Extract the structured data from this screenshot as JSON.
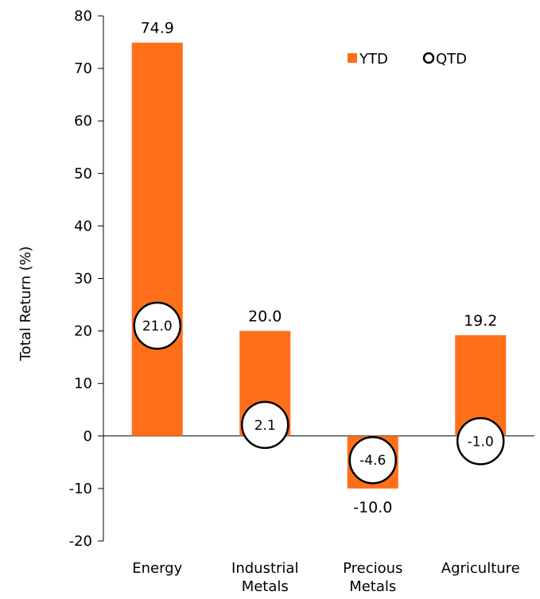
{
  "chart_data": {
    "type": "bar",
    "categories": [
      [
        "Energy"
      ],
      [
        "Industrial",
        "Metals"
      ],
      [
        "Precious",
        "Metals"
      ],
      [
        "Agriculture"
      ]
    ],
    "series": [
      {
        "name": "YTD",
        "kind": "bar",
        "color": "#FF6F1A",
        "values": [
          74.9,
          20.0,
          -10.0,
          19.2
        ],
        "labels": [
          "74.9",
          "20.0",
          "-10.0",
          "19.2"
        ]
      },
      {
        "name": "QTD",
        "kind": "marker",
        "marker": "circle",
        "values": [
          21.0,
          2.1,
          -4.6,
          -1.0
        ],
        "labels": [
          "21.0",
          "2.1",
          "-4.6",
          "-1.0"
        ]
      }
    ],
    "ylabel": "Total Return (%)",
    "ylim": [
      -20,
      80
    ],
    "yticks": [
      "-20",
      "-10",
      "0",
      "10",
      "20",
      "30",
      "40",
      "50",
      "60",
      "70",
      "80"
    ],
    "legend_position": "top-right",
    "grid": false
  }
}
